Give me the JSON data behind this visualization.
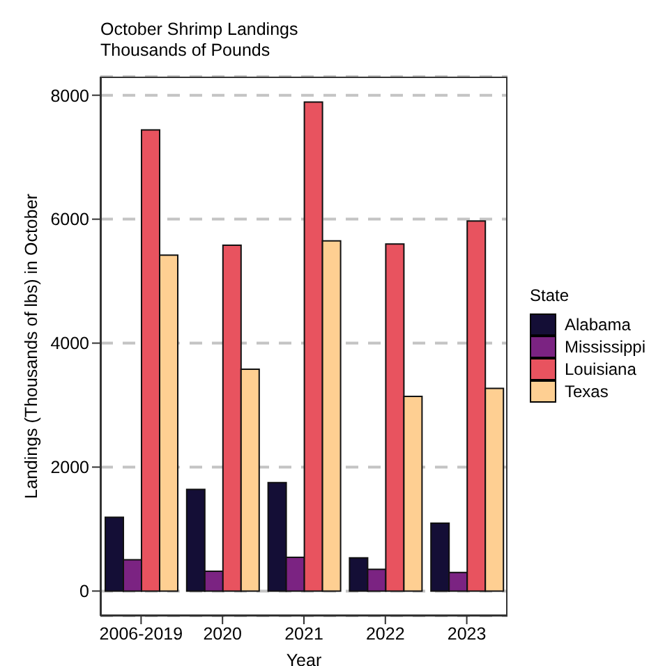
{
  "chart_data": {
    "type": "bar",
    "title": "October Shrimp Landings",
    "subtitle": "Thousands of Pounds",
    "xlabel": "Year",
    "ylabel": "Landings (Thousands of lbs) in October",
    "legend_title": "State",
    "categories": [
      "2006-2019",
      "2020",
      "2021",
      "2022",
      "2023"
    ],
    "series": [
      {
        "name": "Alabama",
        "color": "#140e36",
        "values": [
          1190,
          1640,
          1750,
          535,
          1095
        ]
      },
      {
        "name": "Mississippi",
        "color": "#7b2382",
        "values": [
          505,
          320,
          545,
          350,
          300
        ]
      },
      {
        "name": "Louisiana",
        "color": "#e8535f",
        "values": [
          7440,
          5580,
          7890,
          5600,
          5970
        ]
      },
      {
        "name": "Texas",
        "color": "#fecf92",
        "values": [
          5420,
          3580,
          5650,
          3140,
          3270
        ]
      }
    ],
    "ylim": [
      -400,
      8300
    ],
    "yticks": [
      0,
      2000,
      4000,
      6000,
      8000
    ],
    "grid": "y",
    "legend": "right"
  }
}
